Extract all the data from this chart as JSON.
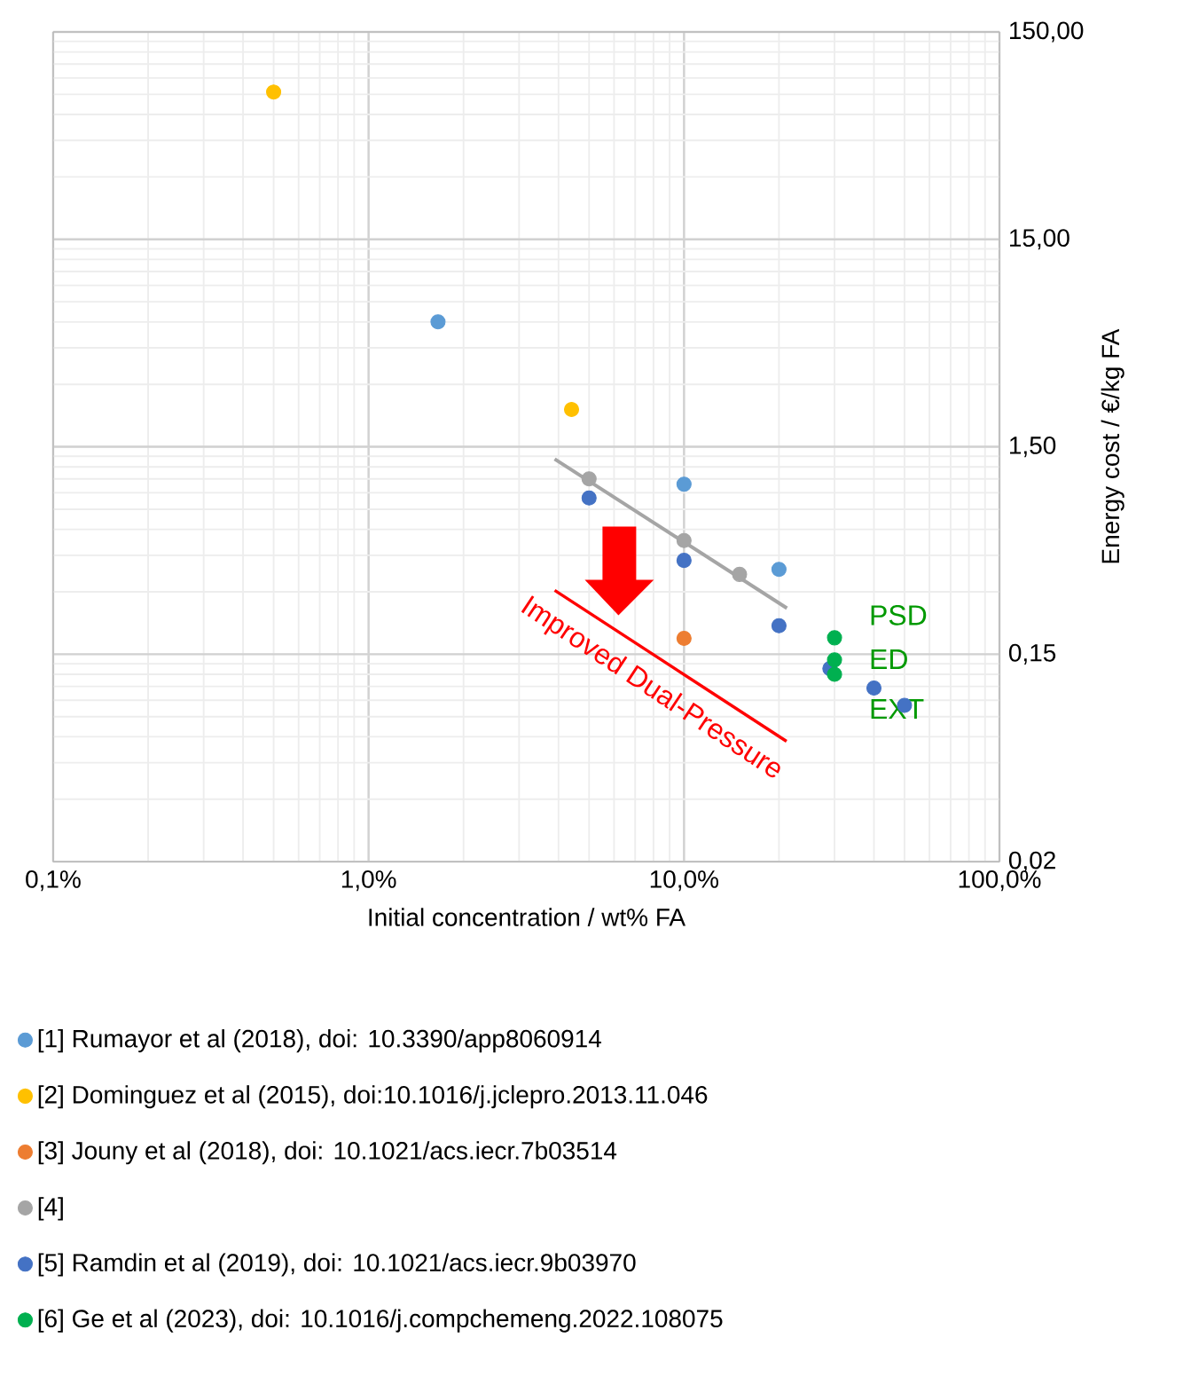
{
  "chart_data": {
    "type": "scatter",
    "xlabel": "Initial concentration / wt% FA",
    "ylabel": "Energy cost / €/kg FA",
    "log": "xy",
    "grid": true,
    "legend": "bottom",
    "xlim": [
      0.1,
      100
    ],
    "xticks": [
      {
        "value": 0.1,
        "label": "0,1%"
      },
      {
        "value": 1,
        "label": "1,0%"
      },
      {
        "value": 10,
        "label": "10,0%"
      },
      {
        "value": 100,
        "label": "100,0%"
      }
    ],
    "ylim": [
      0.015,
      150
    ],
    "yticks": [
      {
        "value": 0.015,
        "label": "0,02"
      },
      {
        "value": 0.15,
        "label": "0,15"
      },
      {
        "value": 1.5,
        "label": "1,50"
      },
      {
        "value": 15,
        "label": "15,00"
      },
      {
        "value": 150,
        "label": "150,00"
      }
    ],
    "series": [
      {
        "name": "[1] Rumayor et al (2018), doi: 10.3390/app8060914",
        "color": "#5b9bd5",
        "x": [
          1.66,
          10,
          20
        ],
        "values": [
          6.0,
          0.99,
          0.385
        ]
      },
      {
        "name": "[2] Dominguez et al (2015), doi:10.1016/j.jclepro.2013.11.046",
        "color": "#ffc000",
        "x": [
          0.5,
          4.4
        ],
        "values": [
          77,
          2.27
        ]
      },
      {
        "name": "[3] Jouny et al (2018), doi: 10.1021/acs.iecr.7b03514",
        "color": "#ed7d31",
        "x": [
          10
        ],
        "values": [
          0.179
        ]
      },
      {
        "name": "[4]",
        "color": "#a5a5a5",
        "x": [
          5,
          10,
          15
        ],
        "values": [
          1.05,
          0.53,
          0.364
        ]
      },
      {
        "name": "[5] Ramdin et al (2019), doi: 10.1021/acs.iecr.9b03970",
        "color": "#4472c4",
        "x": [
          5,
          10,
          20,
          29,
          40,
          50
        ],
        "values": [
          0.85,
          0.425,
          0.206,
          0.128,
          0.103,
          0.085
        ]
      },
      {
        "name": "[6] Ge et al (2023), doi: 10.1016/j.compchemeng.2022.108075",
        "color": "#00b050",
        "x": [
          30,
          30,
          30
        ],
        "values": [
          0.18,
          0.141,
          0.12
        ]
      },
      {
        "type": "line",
        "color": "#a5a5a5",
        "x": [
          3.89,
          21.2
        ],
        "values": [
          1.31,
          0.25
        ]
      }
    ],
    "annotations": [
      "PSD",
      "ED",
      "EXT",
      "Improved Dual-Pressure"
    ]
  }
}
